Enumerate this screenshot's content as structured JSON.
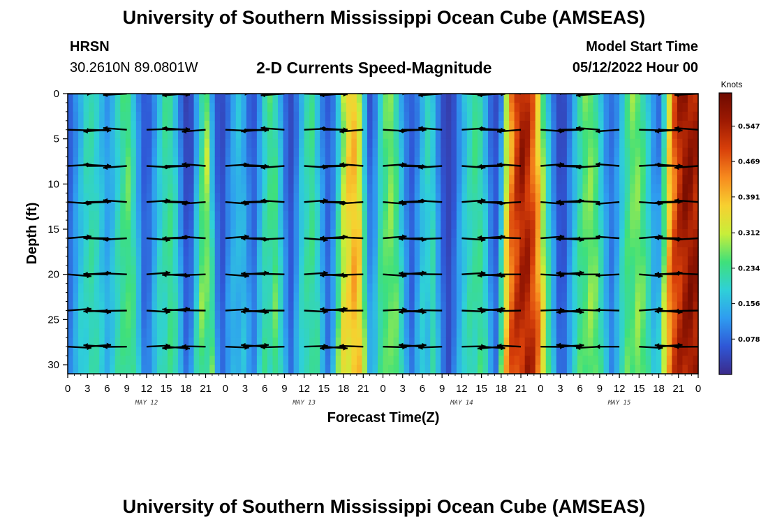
{
  "header": {
    "title": "University of Southern Mississippi Ocean Cube (AMSEAS)",
    "station": "HRSN",
    "coords": "30.2610N  89.0801W",
    "plot_title": "2-D Currents Speed-Magnitude",
    "model_start_label": "Model Start Time",
    "model_start_value": "05/12/2022 Hour 00"
  },
  "footer": {
    "title": "University of Southern Mississippi Ocean Cube (AMSEAS)"
  },
  "colors": {
    "palette": [
      "#3b2a8a",
      "#2f57d6",
      "#2f9cf0",
      "#2fd0d8",
      "#3fe07a",
      "#c8ee3a",
      "#f7d030",
      "#f78a1e",
      "#d8400a",
      "#9e1a02",
      "#6e0a00"
    ]
  },
  "chart_data": {
    "type": "heatmap",
    "title": "2-D Currents Speed-Magnitude",
    "xlabel": "Forecast Time(Z)",
    "ylabel": "Depth (ft)",
    "x_tick_labels": [
      "0",
      "3",
      "6",
      "9",
      "12",
      "15",
      "18",
      "21",
      "0",
      "3",
      "6",
      "9",
      "12",
      "15",
      "18",
      "21",
      "0",
      "3",
      "6",
      "9",
      "12",
      "15",
      "18",
      "21",
      "0",
      "3",
      "6",
      "9",
      "12",
      "15",
      "18",
      "21",
      "0"
    ],
    "x_range_hours": [
      0,
      96
    ],
    "date_labels": [
      {
        "text": "MAY 12",
        "hour": 12
      },
      {
        "text": "MAY 13",
        "hour": 36
      },
      {
        "text": "MAY 14",
        "hour": 60
      },
      {
        "text": "MAY 15",
        "hour": 84
      }
    ],
    "y_ticks": [
      0,
      5,
      10,
      15,
      20,
      25,
      30
    ],
    "ylim": [
      0,
      31
    ],
    "y_inverted": true,
    "colorbar": {
      "unit": "Knots",
      "min": 0,
      "max": 0.62,
      "tick_values": [
        0.547,
        0.469,
        0.391,
        0.312,
        0.234,
        0.156,
        0.078
      ],
      "tick_labels": [
        "0.547",
        "0.469",
        "0.391",
        "0.312",
        "0.234",
        "0.156",
        "0.078"
      ]
    },
    "speed_profile_knots": [
      [
        0,
        0.05
      ],
      [
        1,
        0.1
      ],
      [
        2,
        0.16
      ],
      [
        3,
        0.22
      ],
      [
        4,
        0.2
      ],
      [
        5,
        0.16
      ],
      [
        6,
        0.12
      ],
      [
        7,
        0.16
      ],
      [
        8,
        0.22
      ],
      [
        9,
        0.26
      ],
      [
        10,
        0.18
      ],
      [
        11,
        0.08
      ],
      [
        12,
        0.05
      ],
      [
        13,
        0.1
      ],
      [
        14,
        0.18
      ],
      [
        15,
        0.24
      ],
      [
        16,
        0.2
      ],
      [
        17,
        0.1
      ],
      [
        18,
        0.03
      ],
      [
        19,
        0.05
      ],
      [
        20,
        0.18
      ],
      [
        21,
        0.3
      ],
      [
        22,
        0.12
      ],
      [
        23,
        0.03
      ],
      [
        24,
        0.06
      ],
      [
        25,
        0.13
      ],
      [
        26,
        0.17
      ],
      [
        27,
        0.12
      ],
      [
        28,
        0.04
      ],
      [
        29,
        0.1
      ],
      [
        30,
        0.2
      ],
      [
        31,
        0.26
      ],
      [
        32,
        0.18
      ],
      [
        33,
        0.08
      ],
      [
        34,
        0.04
      ],
      [
        35,
        0.1
      ],
      [
        36,
        0.2
      ],
      [
        37,
        0.24
      ],
      [
        38,
        0.16
      ],
      [
        39,
        0.08
      ],
      [
        40,
        0.06
      ],
      [
        41,
        0.14
      ],
      [
        42,
        0.3
      ],
      [
        43,
        0.4
      ],
      [
        44,
        0.36
      ],
      [
        45,
        0.18
      ],
      [
        46,
        0.05
      ],
      [
        47,
        0.12
      ],
      [
        48,
        0.24
      ],
      [
        49,
        0.28
      ],
      [
        50,
        0.22
      ],
      [
        51,
        0.12
      ],
      [
        52,
        0.06
      ],
      [
        53,
        0.08
      ],
      [
        54,
        0.16
      ],
      [
        55,
        0.22
      ],
      [
        56,
        0.12
      ],
      [
        57,
        0.05
      ],
      [
        58,
        0.03
      ],
      [
        59,
        0.06
      ],
      [
        60,
        0.14
      ],
      [
        61,
        0.2
      ],
      [
        62,
        0.24
      ],
      [
        63,
        0.2
      ],
      [
        64,
        0.1
      ],
      [
        65,
        0.04
      ],
      [
        66,
        0.1
      ],
      [
        67,
        0.34
      ],
      [
        68,
        0.5
      ],
      [
        69,
        0.56
      ],
      [
        70,
        0.52
      ],
      [
        71,
        0.44
      ],
      [
        72,
        0.3
      ],
      [
        73,
        0.18
      ],
      [
        74,
        0.08
      ],
      [
        75,
        0.03
      ],
      [
        76,
        0.06
      ],
      [
        77,
        0.14
      ],
      [
        78,
        0.22
      ],
      [
        79,
        0.28
      ],
      [
        80,
        0.26
      ],
      [
        81,
        0.18
      ],
      [
        82,
        0.1
      ],
      [
        83,
        0.08
      ],
      [
        84,
        0.14
      ],
      [
        85,
        0.22
      ],
      [
        86,
        0.28
      ],
      [
        87,
        0.26
      ],
      [
        88,
        0.2
      ],
      [
        89,
        0.12
      ],
      [
        90,
        0.08
      ],
      [
        91,
        0.24
      ],
      [
        92,
        0.44
      ],
      [
        93,
        0.54
      ],
      [
        94,
        0.58
      ],
      [
        95,
        0.56
      ],
      [
        96,
        0.52
      ]
    ],
    "arrow_depths_ft": [
      0,
      4,
      8,
      12,
      16,
      20,
      24,
      28
    ],
    "arrow_times_hours": [
      0,
      3,
      6,
      9,
      12,
      15,
      18,
      21,
      24,
      27,
      30,
      33,
      36,
      39,
      42,
      45,
      48,
      51,
      54,
      57,
      60,
      63,
      66,
      69,
      72,
      75,
      78,
      81,
      84,
      87,
      90,
      93,
      96
    ]
  },
  "axes": {
    "tick_labels": [
      "0",
      "3",
      "6",
      "9",
      "12",
      "15",
      "18",
      "21",
      "0",
      "3",
      "6",
      "9",
      "12",
      "15",
      "18",
      "21",
      "0",
      "3",
      "6",
      "9",
      "12",
      "15",
      "18",
      "21",
      "0",
      "3",
      "6",
      "9",
      "12",
      "15",
      "18",
      "21",
      "0"
    ]
  }
}
